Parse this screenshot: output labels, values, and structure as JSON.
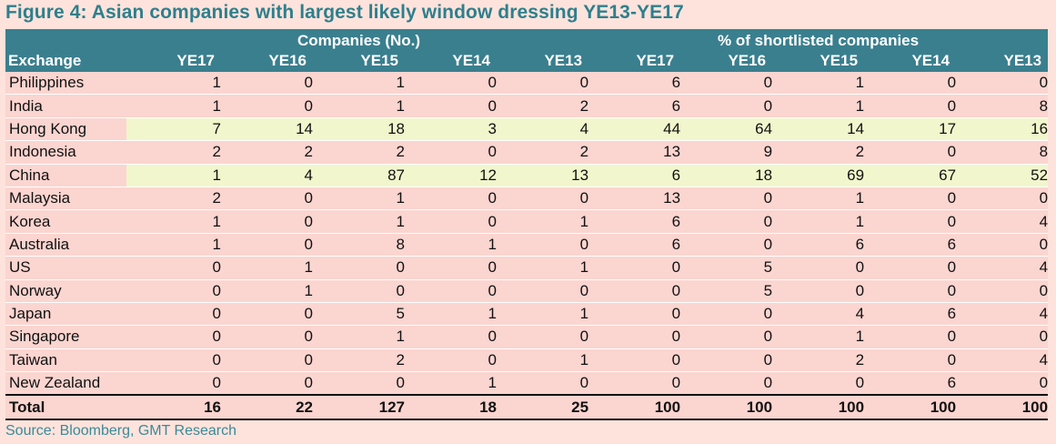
{
  "title": "Figure 4: Asian companies with largest likely window dressing YE13-YE17",
  "groups": {
    "companies": "Companies (No.)",
    "percent": "% of shortlisted companies"
  },
  "columns": [
    "Exchange",
    "YE17",
    "YE16",
    "YE15",
    "YE14",
    "YE13",
    "YE17",
    "YE16",
    "YE15",
    "YE14",
    "YE13"
  ],
  "rows": [
    {
      "name": "Philippines",
      "values": [
        "1",
        "0",
        "1",
        "0",
        "0",
        "6",
        "0",
        "1",
        "0",
        "0"
      ],
      "highlight": false
    },
    {
      "name": "India",
      "values": [
        "1",
        "0",
        "1",
        "0",
        "2",
        "6",
        "0",
        "1",
        "0",
        "8"
      ],
      "highlight": false
    },
    {
      "name": "Hong Kong",
      "values": [
        "7",
        "14",
        "18",
        "3",
        "4",
        "44",
        "64",
        "14",
        "17",
        "16"
      ],
      "highlight": true
    },
    {
      "name": "Indonesia",
      "values": [
        "2",
        "2",
        "2",
        "0",
        "2",
        "13",
        "9",
        "2",
        "0",
        "8"
      ],
      "highlight": false
    },
    {
      "name": "China",
      "values": [
        "1",
        "4",
        "87",
        "12",
        "13",
        "6",
        "18",
        "69",
        "67",
        "52"
      ],
      "highlight": true
    },
    {
      "name": "Malaysia",
      "values": [
        "2",
        "0",
        "1",
        "0",
        "0",
        "13",
        "0",
        "1",
        "0",
        "0"
      ],
      "highlight": false
    },
    {
      "name": "Korea",
      "values": [
        "1",
        "0",
        "1",
        "0",
        "1",
        "6",
        "0",
        "1",
        "0",
        "4"
      ],
      "highlight": false
    },
    {
      "name": "Australia",
      "values": [
        "1",
        "0",
        "8",
        "1",
        "0",
        "6",
        "0",
        "6",
        "6",
        "0"
      ],
      "highlight": false
    },
    {
      "name": "US",
      "values": [
        "0",
        "1",
        "0",
        "0",
        "1",
        "0",
        "5",
        "0",
        "0",
        "4"
      ],
      "highlight": false
    },
    {
      "name": "Norway",
      "values": [
        "0",
        "1",
        "0",
        "0",
        "0",
        "0",
        "5",
        "0",
        "0",
        "0"
      ],
      "highlight": false
    },
    {
      "name": "Japan",
      "values": [
        "0",
        "0",
        "5",
        "1",
        "1",
        "0",
        "0",
        "4",
        "6",
        "4"
      ],
      "highlight": false
    },
    {
      "name": "Singapore",
      "values": [
        "0",
        "0",
        "1",
        "0",
        "0",
        "0",
        "0",
        "1",
        "0",
        "0"
      ],
      "highlight": false
    },
    {
      "name": "Taiwan",
      "values": [
        "0",
        "0",
        "2",
        "0",
        "1",
        "0",
        "0",
        "2",
        "0",
        "4"
      ],
      "highlight": false
    },
    {
      "name": "New Zealand",
      "values": [
        "0",
        "0",
        "0",
        "1",
        "0",
        "0",
        "0",
        "0",
        "6",
        "0"
      ],
      "highlight": false
    }
  ],
  "total": {
    "name": "Total",
    "values": [
      "16",
      "22",
      "127",
      "18",
      "25",
      "100",
      "100",
      "100",
      "100",
      "100"
    ]
  },
  "source": "Source: Bloomberg, GMT Research",
  "colors": {
    "header_bg": "#3a7f8e",
    "row_bg": "#fbd5d0",
    "highlight_bg": "#f2f6cc",
    "title": "#2e7f8c",
    "page_bg": "#fde3dc"
  }
}
